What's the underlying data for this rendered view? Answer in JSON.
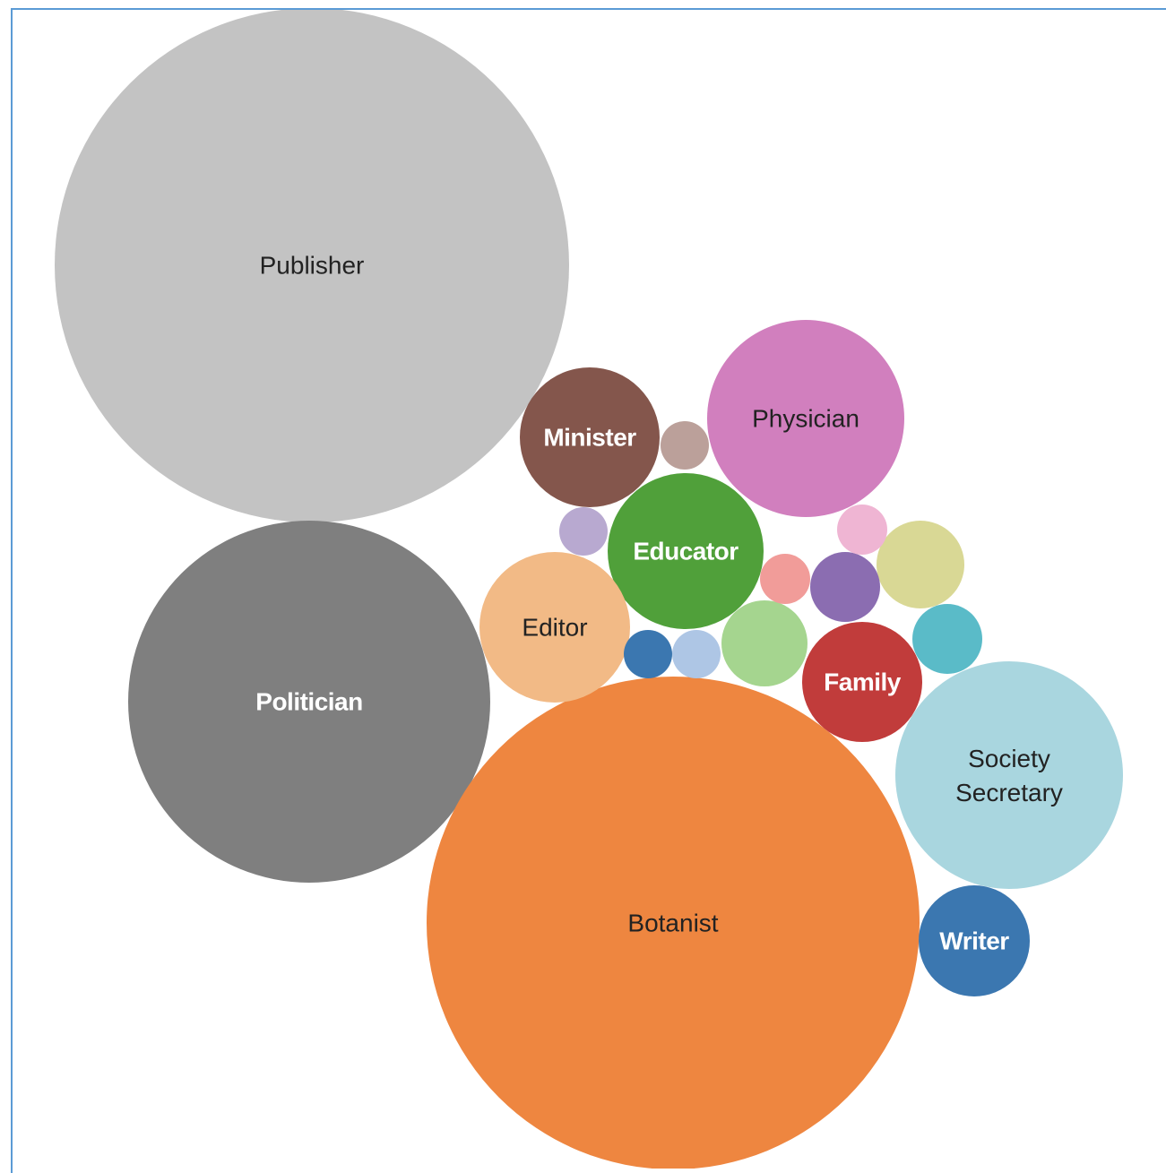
{
  "chart_data": {
    "type": "bubble",
    "bubbles": [
      {
        "label": "Publisher",
        "color": "#c3c3c3",
        "text_color": "#222222",
        "bold": false
      },
      {
        "label": "Politician",
        "color": "#7f7f7f",
        "text_color": "#ffffff",
        "bold": true
      },
      {
        "label": "Botanist",
        "color": "#ee8640",
        "text_color": "#222222",
        "bold": false
      },
      {
        "label": "Physician",
        "color": "#d17fbe",
        "text_color": "#222222",
        "bold": false
      },
      {
        "label": "Society Secretary",
        "lines": [
          "Society",
          "Secretary"
        ],
        "color": "#a9d6df",
        "text_color": "#222222",
        "bold": false
      },
      {
        "label": "Educator",
        "color": "#50a03a",
        "text_color": "#ffffff",
        "bold": true
      },
      {
        "label": "Editor",
        "color": "#f2ba86",
        "text_color": "#222222",
        "bold": false
      },
      {
        "label": "Minister",
        "color": "#84564c",
        "text_color": "#ffffff",
        "bold": true
      },
      {
        "label": "Family",
        "color": "#c13c3b",
        "text_color": "#ffffff",
        "bold": true
      },
      {
        "label": "Writer",
        "color": "#3b77b0",
        "text_color": "#ffffff",
        "bold": true
      },
      {
        "label": "",
        "color": "#d9d895",
        "text_color": "#222222",
        "bold": false
      },
      {
        "label": "",
        "color": "#a5d58f",
        "text_color": "#222222",
        "bold": false
      },
      {
        "label": "",
        "color": "#5abbc8",
        "text_color": "#222222",
        "bold": false
      },
      {
        "label": "",
        "color": "#8b6db1",
        "text_color": "#222222",
        "bold": false
      },
      {
        "label": "",
        "color": "#bba09a",
        "text_color": "#222222",
        "bold": false
      },
      {
        "label": "",
        "color": "#efb5d3",
        "text_color": "#222222",
        "bold": false
      },
      {
        "label": "",
        "color": "#f19c99",
        "text_color": "#222222",
        "bold": false
      },
      {
        "label": "",
        "color": "#b8a9d0",
        "text_color": "#222222",
        "bold": false
      },
      {
        "label": "",
        "color": "#aec6e5",
        "text_color": "#222222",
        "bold": false
      },
      {
        "label": "",
        "color": "#3b77b0",
        "text_color": "#222222",
        "bold": false
      }
    ]
  }
}
